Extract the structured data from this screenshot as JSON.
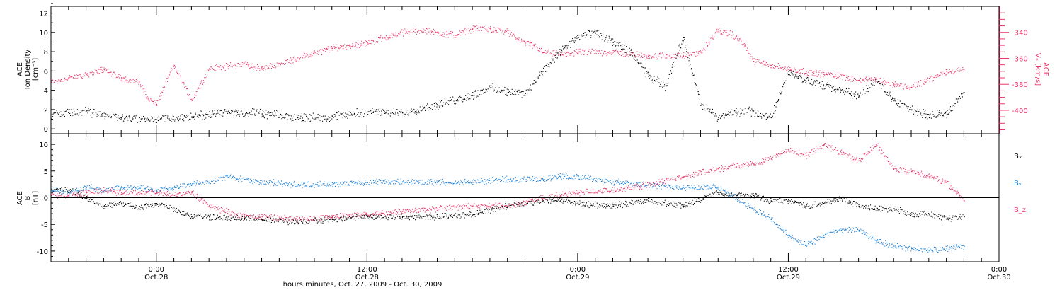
{
  "colors": {
    "black": "#000000",
    "pink": "#e8356a",
    "blue": "#1a7fd6",
    "axis": "#000000"
  },
  "time": {
    "xlabel": "hours:minutes, Oct. 27, 2009 - Oct. 30, 2009",
    "ticks": [
      {
        "t": 12,
        "time": "0:00",
        "date": "Oct.28"
      },
      {
        "t": 24,
        "time": "12:00",
        "date": "Oct.28"
      },
      {
        "t": 36,
        "time": "0:00",
        "date": "Oct.29"
      },
      {
        "t": 48,
        "time": "12:00",
        "date": "Oct.29"
      },
      {
        "t": 60,
        "time": "0:00",
        "date": "Oct.30"
      }
    ]
  },
  "top": {
    "left_label_lines": [
      "ACE",
      "Ion Density",
      "[cm⁻³]"
    ],
    "right_label_lines": [
      "ACE",
      "Vₓ [km/s]"
    ],
    "left_ticks": [
      "0",
      "2",
      "4",
      "6",
      "8",
      "10",
      "12"
    ],
    "right_ticks": [
      "-340",
      "-360",
      "-380",
      "-400"
    ]
  },
  "bottom": {
    "left_label_lines": [
      "ACE",
      "B",
      "[nT]"
    ],
    "left_ticks": [
      "-10",
      "-5",
      "0",
      "5",
      "10"
    ],
    "legend": [
      "Bₓ",
      "Bᵧ",
      "B_z"
    ]
  },
  "chart_data": [
    {
      "type": "scatter",
      "title": "",
      "xlabel": "hours:minutes, Oct. 27, 2009 - Oct. 30, 2009",
      "x_unit": "hours from Oct.27 0:00",
      "xlim": [
        6,
        60
      ],
      "ylim_left": [
        -0.5,
        12.7
      ],
      "ylim_right": [
        -418,
        -320
      ],
      "series": [
        {
          "name": "Ion Density",
          "axis": "left",
          "color": "#000000",
          "x": [
            6,
            8,
            10,
            12,
            14,
            16,
            18,
            20,
            22,
            24,
            26,
            28,
            30,
            31,
            32,
            33,
            34,
            35,
            36,
            37,
            38,
            39,
            40,
            41,
            42,
            43,
            44,
            45,
            46,
            47,
            48,
            49,
            50,
            51,
            52,
            53,
            54,
            55,
            56,
            57,
            58
          ],
          "y": [
            1.5,
            1.8,
            1.2,
            1.0,
            1.3,
            1.8,
            1.6,
            1.2,
            1.3,
            1.8,
            1.7,
            2.5,
            3.5,
            4.3,
            3.8,
            3.7,
            6.0,
            8.0,
            9.5,
            10.0,
            9.0,
            8.0,
            5.5,
            4.5,
            9.5,
            2.5,
            1.2,
            1.8,
            1.8,
            1.2,
            6.0,
            5.0,
            4.5,
            4.0,
            3.5,
            5.0,
            3.0,
            2.0,
            1.5,
            1.5,
            3.8
          ]
        },
        {
          "name": "Vx",
          "axis": "right",
          "color": "#e8356a",
          "x": [
            6,
            7,
            8,
            9,
            10,
            11,
            11.5,
            12,
            13,
            14,
            15,
            16,
            17,
            18,
            20,
            22,
            24,
            26,
            27,
            28,
            29,
            30,
            31,
            32,
            33,
            33.5,
            34,
            35,
            36,
            38,
            40,
            42,
            43,
            44,
            45,
            45.5,
            46,
            47,
            48,
            49,
            50,
            51,
            52,
            53,
            54,
            55,
            57,
            58
          ],
          "y": [
            -378,
            -375,
            -372,
            -368,
            -375,
            -378,
            -390,
            -395,
            -365,
            -392,
            -368,
            -366,
            -364,
            -368,
            -360,
            -352,
            -348,
            -340,
            -338,
            -340,
            -342,
            -337,
            -337,
            -340,
            -348,
            -350,
            -355,
            -357,
            -355,
            -355,
            -358,
            -358,
            -355,
            -338,
            -343,
            -350,
            -362,
            -365,
            -368,
            -370,
            -372,
            -373,
            -377,
            -376,
            -380,
            -382,
            -370,
            -368
          ]
        }
      ]
    },
    {
      "type": "scatter",
      "title": "",
      "xlabel": "hours:minutes, Oct. 27, 2009 - Oct. 30, 2009",
      "x_unit": "hours from Oct.27 0:00",
      "xlim": [
        6,
        60
      ],
      "ylim": [
        -12,
        12
      ],
      "series": [
        {
          "name": "Bx",
          "color": "#000000",
          "x": [
            6,
            7,
            8,
            9,
            10,
            11,
            12,
            13,
            14,
            15,
            16,
            17,
            18,
            20,
            22,
            24,
            26,
            28,
            30,
            32,
            34,
            35,
            36,
            38,
            40,
            42,
            44,
            45,
            46,
            47,
            48,
            49,
            50,
            51,
            52,
            53,
            54,
            55,
            56,
            57,
            58
          ],
          "y": [
            1.5,
            1.5,
            0,
            -1.5,
            -1,
            -2,
            -1,
            -2,
            -3.5,
            -3.5,
            -3.8,
            -3.8,
            -4,
            -4.5,
            -4,
            -3.5,
            -3.5,
            -3.5,
            -3,
            -1.5,
            -0.5,
            -0.5,
            -1,
            -1.5,
            -0.5,
            -1.5,
            1,
            0.5,
            0.5,
            -0.5,
            -0.5,
            -1.5,
            -1,
            0,
            -1.5,
            -2,
            -2,
            -3,
            -3,
            -4,
            -3.5
          ]
        },
        {
          "name": "By",
          "color": "#1a7fd6",
          "x": [
            6,
            7,
            8,
            9,
            10,
            11,
            12,
            13,
            14,
            15,
            16,
            17,
            18,
            20,
            22,
            24,
            26,
            28,
            30,
            32,
            34,
            35,
            36,
            38,
            40,
            42,
            44,
            45,
            46,
            47,
            48,
            49,
            50,
            51,
            52,
            53,
            54,
            55,
            56,
            57,
            58
          ],
          "y": [
            1.5,
            1,
            2,
            1.5,
            2,
            2,
            1.5,
            2,
            2.5,
            3,
            4,
            3.5,
            3,
            2.5,
            2.5,
            3,
            3,
            3,
            3,
            3.5,
            3.5,
            4,
            4,
            3,
            2.5,
            2,
            2,
            0,
            -2,
            -4,
            -7,
            -9,
            -7,
            -6,
            -6,
            -8,
            -9,
            -9.5,
            -9.8,
            -9.5,
            -9
          ]
        },
        {
          "name": "Bz",
          "color": "#e8356a",
          "x": [
            6,
            7,
            8,
            9,
            10,
            11,
            12,
            13,
            14,
            15,
            16,
            17,
            18,
            20,
            22,
            24,
            26,
            28,
            30,
            32,
            34,
            35,
            36,
            38,
            40,
            42,
            44,
            45,
            46,
            47,
            48,
            49,
            50,
            51,
            52,
            53,
            54,
            55,
            56,
            57,
            58
          ],
          "y": [
            0.5,
            0.5,
            1,
            1.5,
            1,
            1,
            1,
            0.5,
            1,
            -1.5,
            -2.5,
            -3.5,
            -3.5,
            -4,
            -3.5,
            -3,
            -2.5,
            -2,
            -1.5,
            -1.5,
            0,
            0.5,
            1,
            1.5,
            2.5,
            4,
            5.5,
            6,
            6.5,
            7.5,
            9,
            8,
            10,
            8.5,
            7,
            10,
            5.5,
            5,
            4,
            3,
            -0.5
          ]
        }
      ]
    }
  ]
}
